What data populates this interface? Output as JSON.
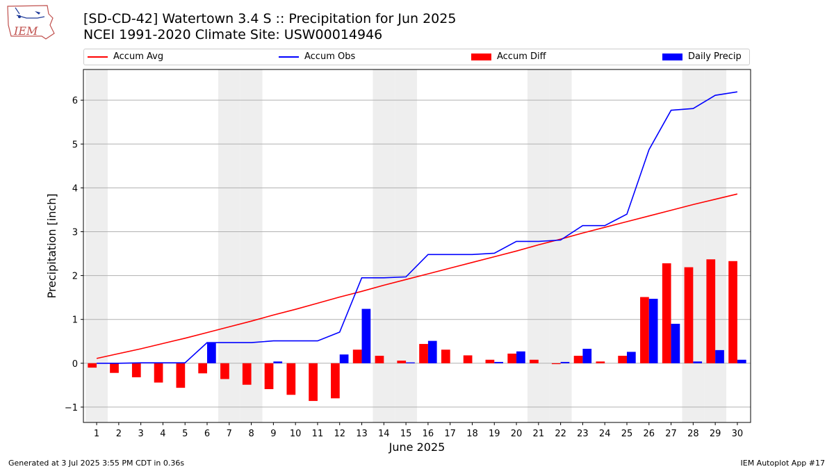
{
  "title_line1": "[SD-CD-42] Watertown 3.4 S :: Precipitation for Jun 2025",
  "title_line2": "NCEI 1991-2020 Climate Site: USW00014946",
  "footer_left": "Generated at 3 Jul 2025 3:55 PM CDT in 0.36s",
  "footer_right": "IEM Autoplot App #17",
  "logo_text": "IEM",
  "colors": {
    "avg": "#ff0000",
    "obs": "#0000ff",
    "diff": "#ff0000",
    "daily": "#0000ff",
    "weekend": "#eeeeee",
    "grid": "#b0b0b0"
  },
  "legend": [
    {
      "label": "Accum Avg",
      "kind": "line",
      "color": "#ff0000"
    },
    {
      "label": "Accum Obs",
      "kind": "line",
      "color": "#0000ff"
    },
    {
      "label": "Accum Diff",
      "kind": "box",
      "color": "#ff0000"
    },
    {
      "label": "Daily Precip",
      "kind": "box",
      "color": "#0000ff"
    }
  ],
  "chart_data": {
    "type": "bar",
    "xlabel": "June 2025",
    "ylabel": "Precipitation [inch]",
    "ylim": [
      -1.35,
      6.7
    ],
    "yticks": [
      -1,
      0,
      1,
      2,
      3,
      4,
      5,
      6
    ],
    "grid": true,
    "legend_position": "top",
    "days": [
      1,
      2,
      3,
      4,
      5,
      6,
      7,
      8,
      9,
      10,
      11,
      12,
      13,
      14,
      15,
      16,
      17,
      18,
      19,
      20,
      21,
      22,
      23,
      24,
      25,
      26,
      27,
      28,
      29,
      30
    ],
    "weekend_days": [
      1,
      7,
      8,
      14,
      15,
      21,
      22,
      28,
      29
    ],
    "series": [
      {
        "name": "Accum Avg",
        "type": "line",
        "values": [
          0.11,
          0.22,
          0.33,
          0.45,
          0.57,
          0.7,
          0.83,
          0.96,
          1.1,
          1.23,
          1.37,
          1.51,
          1.64,
          1.78,
          1.91,
          2.04,
          2.17,
          2.3,
          2.43,
          2.56,
          2.7,
          2.83,
          2.97,
          3.1,
          3.23,
          3.36,
          3.49,
          3.62,
          3.74,
          3.86
        ]
      },
      {
        "name": "Accum Obs",
        "type": "line",
        "values": [
          0.0,
          0.0,
          0.01,
          0.01,
          0.01,
          0.47,
          0.47,
          0.47,
          0.51,
          0.51,
          0.51,
          0.71,
          1.95,
          1.95,
          1.97,
          2.48,
          2.48,
          2.48,
          2.51,
          2.78,
          2.78,
          2.81,
          3.14,
          3.14,
          3.4,
          4.87,
          5.77,
          5.81,
          6.11,
          6.19
        ]
      },
      {
        "name": "Accum Diff",
        "type": "bar",
        "values": [
          -0.1,
          -0.22,
          -0.32,
          -0.44,
          -0.56,
          -0.23,
          -0.36,
          -0.49,
          -0.59,
          -0.72,
          -0.86,
          -0.8,
          0.31,
          0.17,
          0.06,
          0.44,
          0.31,
          0.18,
          0.08,
          0.22,
          0.08,
          -0.02,
          0.17,
          0.04,
          0.17,
          1.51,
          2.28,
          2.19,
          2.37,
          2.33
        ]
      },
      {
        "name": "Daily Precip",
        "type": "bar",
        "values": [
          0.0,
          0.0,
          0.01,
          0.0,
          0.0,
          0.46,
          0.0,
          0.0,
          0.04,
          0.0,
          0.0,
          0.2,
          1.24,
          0.0,
          0.02,
          0.51,
          0.0,
          0.0,
          0.03,
          0.27,
          0.0,
          0.03,
          0.33,
          0.0,
          0.26,
          1.47,
          0.9,
          0.04,
          0.3,
          0.08
        ]
      }
    ]
  }
}
